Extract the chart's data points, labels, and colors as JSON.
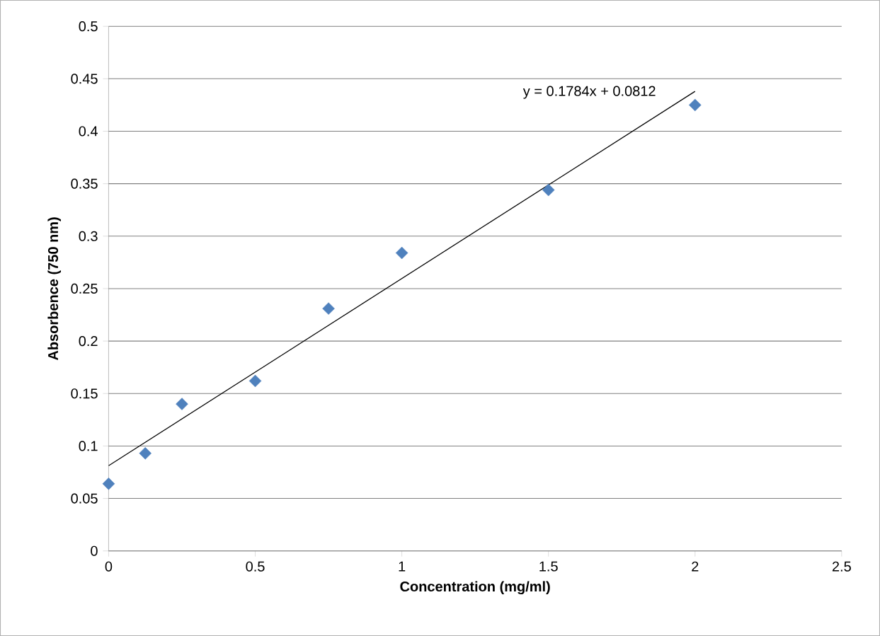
{
  "chart_data": {
    "type": "scatter",
    "xlabel": "Concentration (mg/ml)",
    "ylabel": "Absorbence (750 nm)",
    "xlim": [
      0,
      2.5
    ],
    "ylim": [
      0,
      0.5
    ],
    "xticks": [
      0,
      0.5,
      1,
      1.5,
      2,
      2.5
    ],
    "yticks": [
      0,
      0.05,
      0.1,
      0.15,
      0.2,
      0.25,
      0.3,
      0.35,
      0.4,
      0.45,
      0.5
    ],
    "grid": "y",
    "series": [
      {
        "marker": "diamond",
        "color": "#4f81bd",
        "x": [
          0,
          0.125,
          0.25,
          0.5,
          0.75,
          1,
          1.5,
          2
        ],
        "values": [
          0.064,
          0.093,
          0.14,
          0.162,
          0.231,
          0.284,
          0.344,
          0.425
        ]
      },
      {
        "type": "line",
        "marker": "none",
        "color": "#000000",
        "x": [
          0,
          2
        ],
        "values": [
          0.0812,
          0.438
        ]
      }
    ],
    "annotations": [
      "y = 0.1784x + 0.0812"
    ]
  }
}
